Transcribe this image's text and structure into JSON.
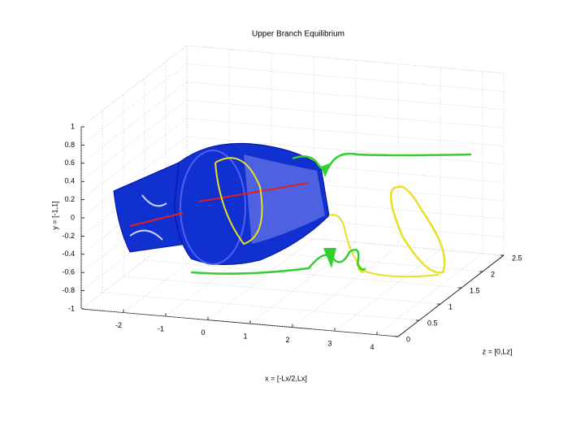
{
  "chart_data": {
    "type": "surface3d",
    "title": "Upper Branch Equilibrium",
    "xlabel": "x = [-Lx/2,Lx]",
    "ylabel": "y = [-1,1]",
    "zlabel": "z = [0,Lz]",
    "xlim": [
      -3,
      4.5
    ],
    "xticks": [
      -2,
      -1,
      0,
      1,
      2,
      3,
      4
    ],
    "ylim": [
      -1,
      1
    ],
    "yticks": [
      -1,
      -0.8,
      -0.6,
      -0.4,
      -0.2,
      0,
      0.2,
      0.4,
      0.6,
      0.8,
      1
    ],
    "zlim": [
      0,
      2.5
    ],
    "zticks": [
      0,
      0.5,
      1,
      1.5,
      2,
      2.5
    ],
    "grid": true
  }
}
